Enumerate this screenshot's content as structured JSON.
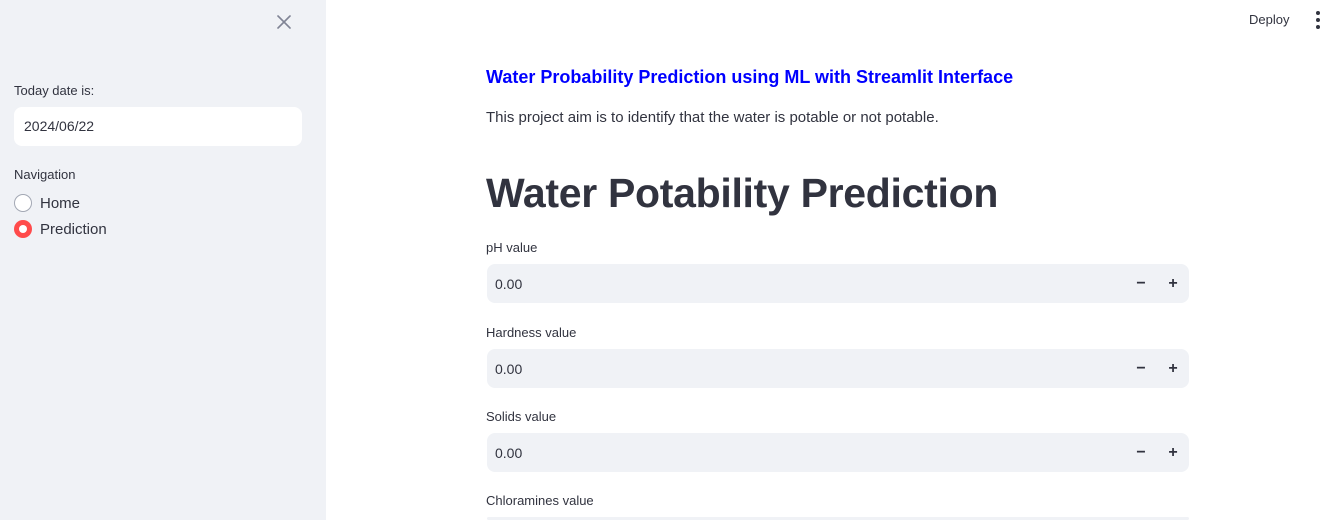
{
  "header": {
    "deploy_label": "Deploy",
    "menu_icon": "vertical-ellipsis-icon"
  },
  "sidebar": {
    "close_icon": "close-icon",
    "date_label": "Today date is:",
    "date_value": "2024/06/22",
    "navigation_label": "Navigation",
    "nav_items": [
      {
        "label": "Home",
        "selected": false
      },
      {
        "label": "Prediction",
        "selected": true
      }
    ],
    "accent_color": "#ff4b4b"
  },
  "main": {
    "subtitle": "Water Probability Prediction using ML with Streamlit Interface",
    "subtitle_color": "#0000ff",
    "description": "This project aim is to identify that the water is potable or not potable.",
    "title": "Water Potability Prediction",
    "fields": [
      {
        "label": "pH value",
        "value": "0.00"
      },
      {
        "label": "Hardness value",
        "value": "0.00"
      },
      {
        "label": "Solids value",
        "value": "0.00"
      },
      {
        "label": "Chloramines value",
        "value": ""
      }
    ],
    "minus_label": "−",
    "plus_label": "+"
  }
}
